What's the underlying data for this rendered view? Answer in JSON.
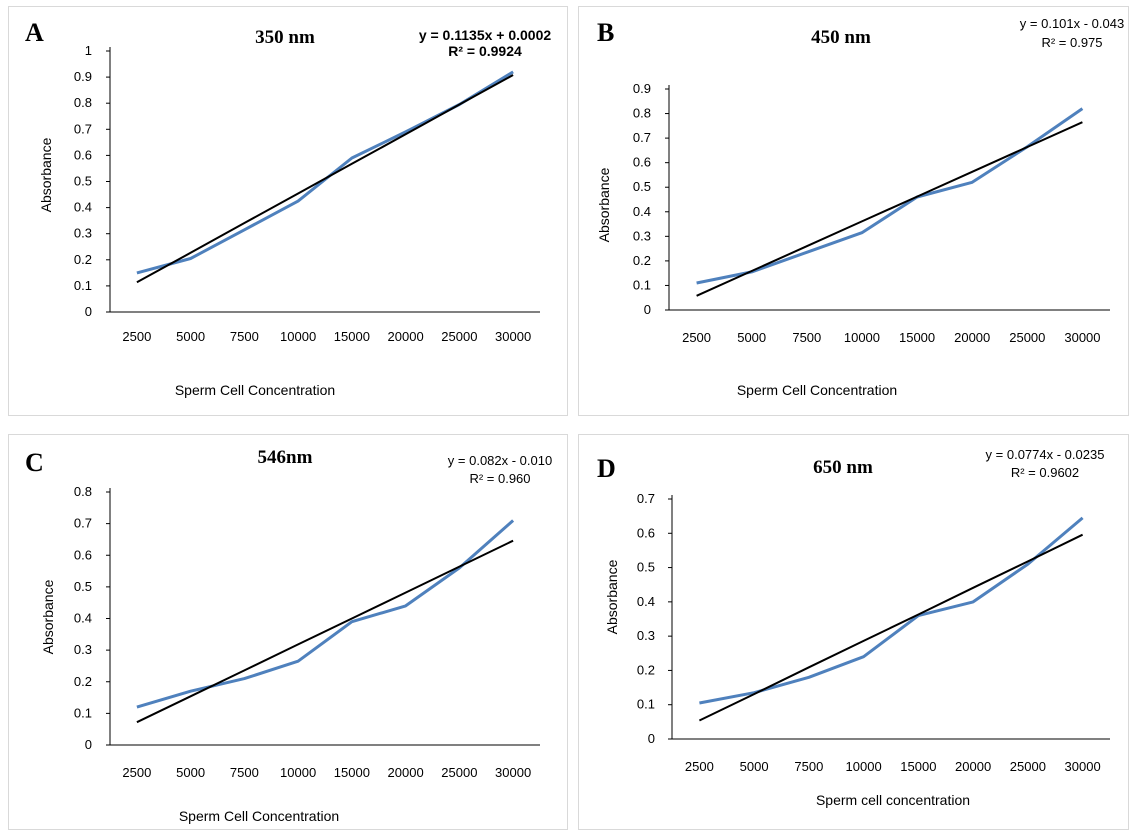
{
  "colors": {
    "data_line": "#4f81bd",
    "fit_line": "#000000"
  },
  "chart_data": [
    {
      "type": "line",
      "panel": "A",
      "title": "350 nm",
      "equation": "y = 0.1135x + 0.0002",
      "r2": "R² = 0.9924",
      "categories": [
        "2500",
        "5000",
        "7500",
        "10000",
        "15000",
        "20000",
        "25000",
        "30000"
      ],
      "series": [
        {
          "values": [
            0.15,
            0.205,
            0.315,
            0.425,
            0.59,
            0.69,
            0.795,
            0.92
          ]
        },
        {
          "values": [
            0.114,
            0.227,
            0.341,
            0.454,
            0.568,
            0.681,
            0.795,
            0.908
          ]
        }
      ],
      "xlabel": "Sperm Cell Concentration",
      "ylabel": "Absorbance",
      "ylim": [
        0,
        1
      ],
      "yticks": [
        "0",
        "0.1",
        "0.2",
        "0.3",
        "0.4",
        "0.5",
        "0.6",
        "0.7",
        "0.8",
        "0.9",
        "1"
      ]
    },
    {
      "type": "line",
      "panel": "B",
      "title": "450 nm",
      "equation": "y = 0.101x - 0.043",
      "r2": "R² = 0.975",
      "categories": [
        "2500",
        "5000",
        "7500",
        "10000",
        "15000",
        "20000",
        "25000",
        "30000"
      ],
      "series": [
        {
          "values": [
            0.11,
            0.155,
            0.235,
            0.315,
            0.46,
            0.52,
            0.665,
            0.82
          ]
        },
        {
          "values": [
            0.058,
            0.159,
            0.26,
            0.361,
            0.462,
            0.563,
            0.664,
            0.765
          ]
        }
      ],
      "xlabel": "Sperm Cell Concentration",
      "ylabel": "Absorbance",
      "ylim": [
        0,
        0.9
      ],
      "yticks": [
        "0",
        "0.1",
        "0.2",
        "0.3",
        "0.4",
        "0.5",
        "0.6",
        "0.7",
        "0.8",
        "0.9"
      ]
    },
    {
      "type": "line",
      "panel": "C",
      "title": "546nm",
      "equation": "y = 0.082x - 0.010",
      "r2": "R² = 0.960",
      "categories": [
        "2500",
        "5000",
        "7500",
        "10000",
        "15000",
        "20000",
        "25000",
        "30000"
      ],
      "series": [
        {
          "values": [
            0.12,
            0.17,
            0.21,
            0.265,
            0.39,
            0.44,
            0.56,
            0.71
          ]
        },
        {
          "values": [
            0.072,
            0.154,
            0.236,
            0.318,
            0.4,
            0.482,
            0.564,
            0.646
          ]
        }
      ],
      "xlabel": "Sperm Cell Concentration",
      "ylabel": "Absorbance",
      "ylim": [
        0,
        0.8
      ],
      "yticks": [
        "0",
        "0.1",
        "0.2",
        "0.3",
        "0.4",
        "0.5",
        "0.6",
        "0.7",
        "0.8"
      ]
    },
    {
      "type": "line",
      "panel": "D",
      "title": "650 nm",
      "equation": "y = 0.0774x - 0.0235",
      "r2": "R² = 0.9602",
      "categories": [
        "2500",
        "5000",
        "7500",
        "10000",
        "15000",
        "20000",
        "25000",
        "30000"
      ],
      "series": [
        {
          "values": [
            0.105,
            0.135,
            0.18,
            0.24,
            0.36,
            0.4,
            0.51,
            0.645
          ]
        },
        {
          "values": [
            0.054,
            0.131,
            0.209,
            0.286,
            0.363,
            0.441,
            0.518,
            0.596
          ]
        }
      ],
      "xlabel": "Sperm cell concentration",
      "ylabel": "Absorbance",
      "ylim": [
        0,
        0.7
      ],
      "yticks": [
        "0",
        "0.1",
        "0.2",
        "0.3",
        "0.4",
        "0.5",
        "0.6",
        "0.7"
      ]
    }
  ]
}
